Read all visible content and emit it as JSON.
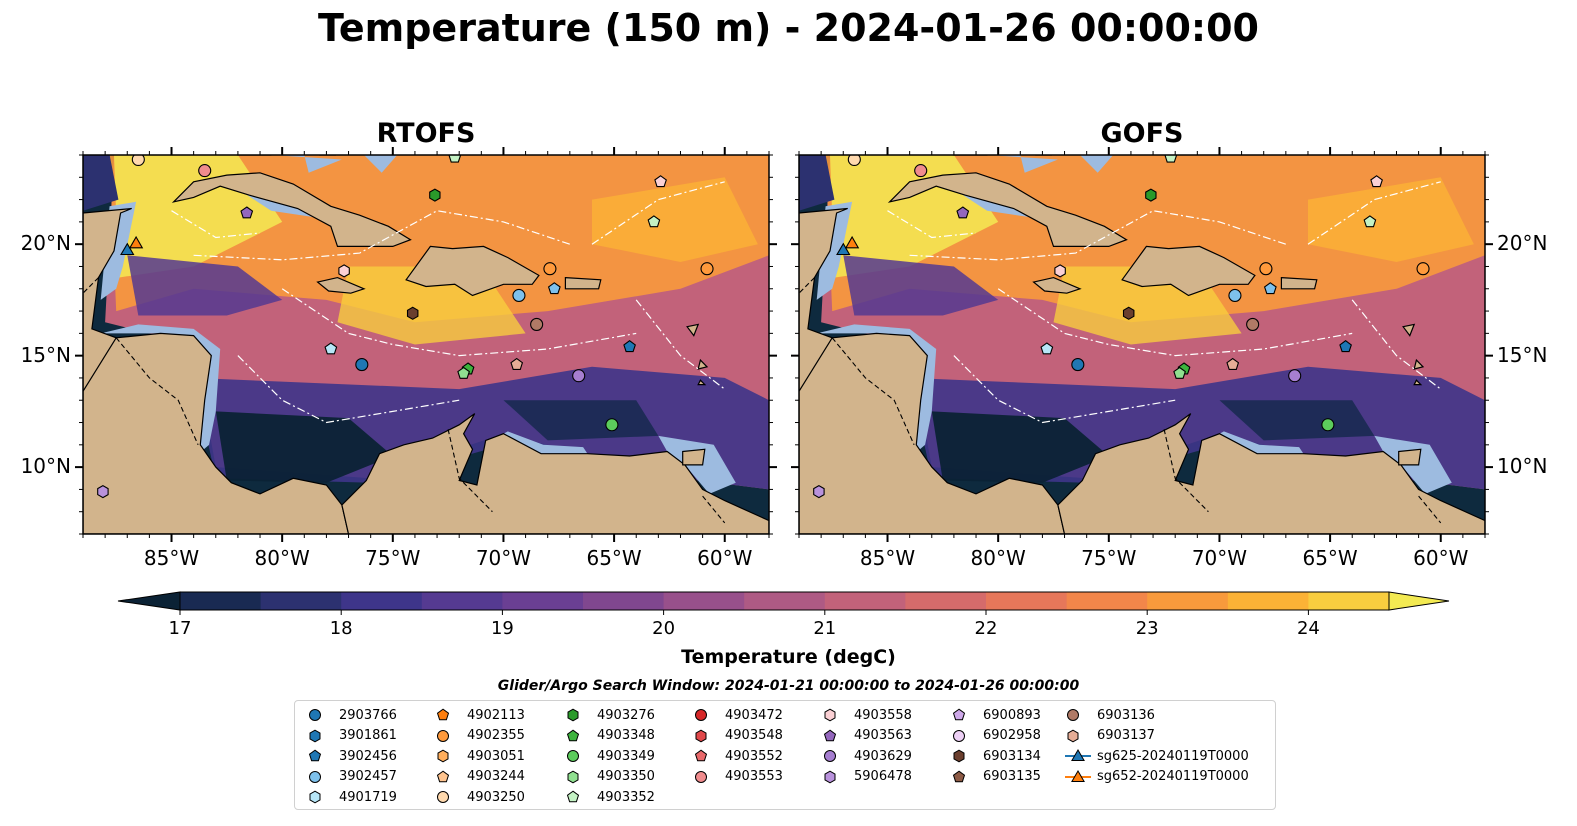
{
  "title": "Temperature (150 m) - 2024-01-26 00:00:00",
  "panels": [
    {
      "key": "rtofs",
      "title": "RTOFS"
    },
    {
      "key": "gofs",
      "title": "GOFS"
    }
  ],
  "map": {
    "lon_range": [
      -89,
      -58
    ],
    "lat_range": [
      7,
      24
    ],
    "lon_ticks": [
      -85,
      -80,
      -75,
      -70,
      -65,
      -60
    ],
    "lat_ticks": [
      10,
      15,
      20
    ],
    "lon_tick_labels": [
      "85°W",
      "80°W",
      "75°W",
      "70°W",
      "65°W",
      "60°W"
    ],
    "lat_tick_labels": [
      "10°N",
      "15°N",
      "20°N"
    ],
    "land_color": "#d2b48c",
    "shelf_color": "#9dbbe0",
    "deep_cold_color": "#0e2a3e"
  },
  "colorbar": {
    "label": "Temperature (degC)",
    "min": 17,
    "max": 24.5,
    "ticks": [
      "17",
      "18",
      "19",
      "20",
      "21",
      "22",
      "23",
      "24"
    ],
    "colors": [
      "#0b2235",
      "#192a52",
      "#2c3170",
      "#3e358a",
      "#553a91",
      "#6a3f93",
      "#80478f",
      "#98508b",
      "#ae5a84",
      "#c2627a",
      "#d56b6b",
      "#e6775a",
      "#f2864a",
      "#f89a3c",
      "#fbb236",
      "#f8cd3f",
      "#f3ea52"
    ]
  },
  "legend": {
    "title": "Glider/Argo Search Window: 2024-01-21 00:00:00 to 2024-01-26 00:00:00",
    "columns": [
      [
        {
          "label": "2903766",
          "shape": "circle",
          "color": "#1f77b4"
        },
        {
          "label": "3901861",
          "shape": "hexagon",
          "color": "#1f77b4"
        },
        {
          "label": "3902456",
          "shape": "pentagon",
          "color": "#1f77b4"
        },
        {
          "label": "3902457",
          "shape": "circle",
          "color": "#7ec1ec"
        },
        {
          "label": "4901719",
          "shape": "hexagon",
          "color": "#b7e6f7"
        }
      ],
      [
        {
          "label": "4902113",
          "shape": "pentagon",
          "color": "#ff7f0e"
        },
        {
          "label": "4902355",
          "shape": "circle",
          "color": "#ff9a3c"
        },
        {
          "label": "4903051",
          "shape": "hexagon",
          "color": "#ffae5c"
        },
        {
          "label": "4903244",
          "shape": "pentagon",
          "color": "#ffc48f"
        },
        {
          "label": "4903250",
          "shape": "circle",
          "color": "#ffd9ae"
        }
      ],
      [
        {
          "label": "4903276",
          "shape": "hexagon",
          "color": "#2a9a2a"
        },
        {
          "label": "4903348",
          "shape": "pentagon",
          "color": "#3db33d"
        },
        {
          "label": "4903349",
          "shape": "circle",
          "color": "#5ccc5c"
        },
        {
          "label": "4903350",
          "shape": "hexagon",
          "color": "#90e090"
        },
        {
          "label": "4903352",
          "shape": "pentagon",
          "color": "#c4f2c4"
        }
      ],
      [
        {
          "label": "4903472",
          "shape": "circle",
          "color": "#d62728"
        },
        {
          "label": "4903548",
          "shape": "hexagon",
          "color": "#e0474a"
        },
        {
          "label": "4903552",
          "shape": "pentagon",
          "color": "#e8686a"
        },
        {
          "label": "4903553",
          "shape": "circle",
          "color": "#f08c8e"
        }
      ],
      [
        {
          "label": "4903558",
          "shape": "hexagon",
          "color": "#fbd0d4"
        },
        {
          "label": "4903563",
          "shape": "pentagon",
          "color": "#9467bd"
        },
        {
          "label": "4903629",
          "shape": "circle",
          "color": "#a67ed0"
        },
        {
          "label": "5906478",
          "shape": "hexagon",
          "color": "#b992dc"
        }
      ],
      [
        {
          "label": "6900893",
          "shape": "pentagon",
          "color": "#cfa9ea"
        },
        {
          "label": "6902958",
          "shape": "circle",
          "color": "#edd0f5"
        },
        {
          "label": "6903134",
          "shape": "hexagon",
          "color": "#6b3f2e"
        },
        {
          "label": "6903135",
          "shape": "pentagon",
          "color": "#8c5a45"
        }
      ],
      [
        {
          "label": "6903136",
          "shape": "circle",
          "color": "#b07a66"
        },
        {
          "label": "6903137",
          "shape": "hexagon",
          "color": "#e6ad96"
        },
        {
          "label": "sg625-20240119T0000",
          "shape": "triangle",
          "color": "#1f77b4"
        },
        {
          "label": "sg652-20240119T0000",
          "shape": "triangle",
          "color": "#ff7f0e"
        }
      ]
    ]
  },
  "markers": [
    {
      "id": "4903250",
      "lon": -86.5,
      "lat": 23.8,
      "shape": "circle",
      "color": "#ffd9ae"
    },
    {
      "id": "4903553",
      "lon": -83.5,
      "lat": 23.3,
      "shape": "circle",
      "color": "#f08c8e"
    },
    {
      "id": "4903352",
      "lon": -72.2,
      "lat": 23.9,
      "shape": "pentagon",
      "color": "#c4f2c4"
    },
    {
      "id": "4903276",
      "lon": -73.1,
      "lat": 22.2,
      "shape": "hexagon",
      "color": "#2a9a2a"
    },
    {
      "id": "4903563",
      "lon": -81.6,
      "lat": 21.4,
      "shape": "pentagon",
      "color": "#9467bd"
    },
    {
      "id": "4903558",
      "lon": -62.9,
      "lat": 22.8,
      "shape": "pentagon",
      "color": "#fbd0d4"
    },
    {
      "id": "4903350",
      "lon": -63.2,
      "lat": 21.0,
      "shape": "pentagon",
      "color": "#c4f2c4"
    },
    {
      "id": "4903553b",
      "lon": -77.2,
      "lat": 18.8,
      "shape": "hexagon",
      "color": "#fbd0d4"
    },
    {
      "id": "4902355",
      "lon": -67.9,
      "lat": 18.9,
      "shape": "circle",
      "color": "#ff9a3c"
    },
    {
      "id": "4903553c",
      "lon": -60.8,
      "lat": 18.9,
      "shape": "circle",
      "color": "#ff9a3c"
    },
    {
      "id": "3902457",
      "lon": -69.3,
      "lat": 17.7,
      "shape": "circle",
      "color": "#7ec1ec"
    },
    {
      "id": "3902456",
      "lon": -67.7,
      "lat": 18.0,
      "shape": "pentagon",
      "color": "#7ec1ec"
    },
    {
      "id": "6903134",
      "lon": -74.1,
      "lat": 16.9,
      "shape": "hexagon",
      "color": "#6b3f2e"
    },
    {
      "id": "6903136",
      "lon": -68.5,
      "lat": 16.4,
      "shape": "circle",
      "color": "#b07a66"
    },
    {
      "id": "4901719",
      "lon": -77.8,
      "lat": 15.3,
      "shape": "pentagon",
      "color": "#b7e6f7"
    },
    {
      "id": "2903766",
      "lon": -76.4,
      "lat": 14.6,
      "shape": "circle",
      "color": "#1f77b4"
    },
    {
      "id": "3901861",
      "lon": -64.3,
      "lat": 15.4,
      "shape": "pentagon",
      "color": "#1f77b4"
    },
    {
      "id": "4903348",
      "lon": -71.6,
      "lat": 14.4,
      "shape": "pentagon",
      "color": "#3db33d"
    },
    {
      "id": "4903350b",
      "lon": -71.8,
      "lat": 14.2,
      "shape": "pentagon",
      "color": "#90e090"
    },
    {
      "id": "6903137",
      "lon": -69.4,
      "lat": 14.6,
      "shape": "pentagon",
      "color": "#e6ad96"
    },
    {
      "id": "4903629",
      "lon": -66.6,
      "lat": 14.1,
      "shape": "circle",
      "color": "#a67ed0"
    },
    {
      "id": "4903349",
      "lon": -65.1,
      "lat": 11.9,
      "shape": "circle",
      "color": "#5ccc5c"
    },
    {
      "id": "5906478",
      "lon": -88.1,
      "lat": 8.9,
      "shape": "hexagon",
      "color": "#b992dc"
    },
    {
      "id": "sg625-20240119T0000",
      "lon": -87.0,
      "lat": 19.7,
      "shape": "triangle",
      "color": "#1f77b4"
    },
    {
      "id": "sg652-20240119T0000",
      "lon": -86.6,
      "lat": 20.0,
      "shape": "triangle",
      "color": "#ff7f0e"
    }
  ]
}
